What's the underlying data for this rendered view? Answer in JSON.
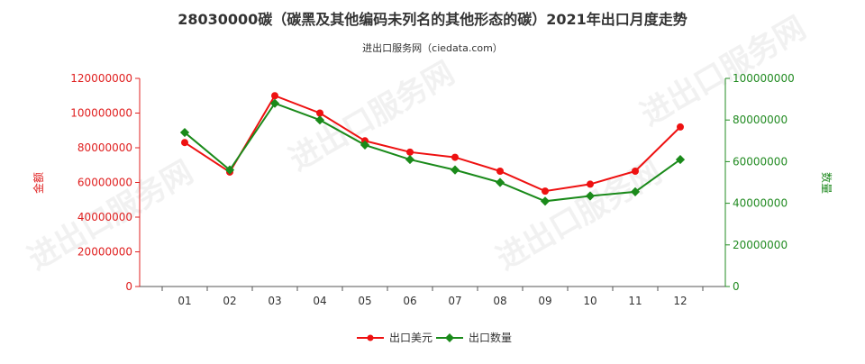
{
  "chart_data": {
    "type": "line",
    "title": "28030000碳（碳黑及其他编码未列名的其他形态的碳）2021年出口月度走势",
    "subtitle": "进出口服务网（ciedata.com）",
    "watermark": "进出口服务网",
    "categories": [
      "01",
      "02",
      "03",
      "04",
      "05",
      "06",
      "07",
      "08",
      "09",
      "10",
      "11",
      "12"
    ],
    "y_left": {
      "label": "金额",
      "ticks": [
        "0",
        "20000000",
        "40000000",
        "60000000",
        "80000000",
        "100000000",
        "120000000"
      ],
      "ylim": [
        0,
        120000000
      ],
      "color": "#e02020"
    },
    "y_right": {
      "label": "数量",
      "ticks": [
        "0",
        "20000000",
        "40000000",
        "60000000",
        "80000000",
        "100000000"
      ],
      "ylim": [
        0,
        100000000
      ],
      "color": "#228b22"
    },
    "series": [
      {
        "name": "出口美元",
        "axis": "left",
        "color": "#ee1111",
        "marker": "circle",
        "values": [
          83000000,
          66000000,
          110000000,
          100000000,
          84000000,
          77500000,
          74500000,
          66500000,
          55000000,
          59000000,
          66500000,
          92000000
        ]
      },
      {
        "name": "出口数量",
        "axis": "right",
        "color": "#1a8a1a",
        "marker": "diamond",
        "values": [
          74000000,
          56000000,
          88000000,
          80000000,
          68000000,
          61000000,
          56000000,
          50000000,
          41000000,
          43500000,
          45500000,
          61000000
        ]
      }
    ],
    "grid": false,
    "legend_position": "bottom-center"
  }
}
